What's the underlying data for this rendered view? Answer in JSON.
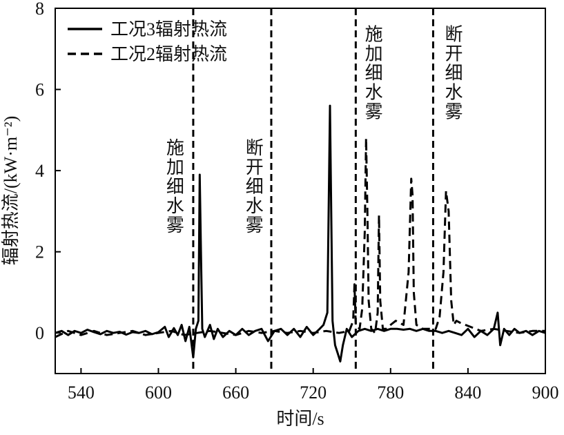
{
  "chart_data": {
    "type": "line",
    "xlabel": "时间/s",
    "ylabel": "辐射热流/(kW·m⁻²)",
    "xlim": [
      520,
      900
    ],
    "ylim": [
      -1,
      8
    ],
    "xticks": [
      540,
      600,
      660,
      720,
      780,
      840,
      900
    ],
    "yticks": [
      0,
      2,
      4,
      6,
      8
    ],
    "legend": "upper left",
    "vlines": [
      627,
      687.5,
      753,
      813
    ],
    "annotations": [
      {
        "text": "施加细水雾",
        "x": 612,
        "y": 4.8
      },
      {
        "text": "断开细水雾",
        "x": 673.5,
        "y": 4.8
      },
      {
        "text": "施加细水雾",
        "x": 766,
        "y": 7.6
      },
      {
        "text": "断开细水雾",
        "x": 828,
        "y": 7.6
      }
    ],
    "series": [
      {
        "name": "工况3辐射热流",
        "color": "#000000",
        "dash": "solid",
        "x": [
          520,
          525,
          530,
          535,
          540,
          545,
          550,
          555,
          560,
          565,
          570,
          575,
          580,
          585,
          590,
          595,
          600,
          605,
          608,
          612,
          615,
          618,
          621,
          624,
          627,
          629,
          631,
          632,
          633,
          634,
          636,
          640,
          643,
          646,
          650,
          655,
          660,
          665,
          670,
          675,
          680,
          685,
          690,
          695,
          700,
          705,
          710,
          715,
          720,
          725,
          728,
          731,
          733,
          734,
          735,
          737,
          739,
          741,
          743,
          746,
          750,
          755,
          760,
          765,
          770,
          775,
          780,
          785,
          790,
          795,
          800,
          805,
          810,
          815,
          820,
          825,
          830,
          835,
          840,
          845,
          850,
          855,
          860,
          863,
          865,
          868,
          872,
          876,
          880,
          885,
          890,
          895,
          900
        ],
        "values": [
          0.0,
          0.05,
          -0.05,
          0.05,
          0.0,
          0.08,
          0.02,
          -0.03,
          0.05,
          0.0,
          0.03,
          -0.04,
          0.02,
          0.0,
          0.05,
          -0.03,
          0.02,
          0.15,
          -0.1,
          0.12,
          -0.05,
          0.2,
          -0.2,
          0.15,
          -0.6,
          0.1,
          0.3,
          3.9,
          2.0,
          0.1,
          -0.1,
          0.2,
          -0.15,
          0.1,
          -0.1,
          0.05,
          -0.05,
          0.1,
          -0.05,
          0.05,
          0.1,
          -0.2,
          0.05,
          0.1,
          -0.05,
          0.1,
          -0.1,
          0.15,
          -0.05,
          0.1,
          0.2,
          0.5,
          5.6,
          3.0,
          0.3,
          -0.3,
          -0.5,
          -0.7,
          -0.3,
          0.1,
          -0.1,
          0.05,
          0.1,
          0.05,
          0.1,
          0.05,
          0.1,
          0.1,
          0.08,
          0.1,
          0.05,
          0.1,
          0.05,
          0.05,
          0.0,
          0.05,
          0.0,
          -0.05,
          0.1,
          -0.1,
          0.05,
          -0.05,
          0.1,
          0.5,
          -0.3,
          0.1,
          -0.05,
          0.1,
          0.0,
          0.05,
          -0.05,
          0.05,
          0.0
        ]
      },
      {
        "name": "工况2辐射热流",
        "color": "#000000",
        "dash": "dashed",
        "x": [
          520,
          530,
          540,
          550,
          560,
          570,
          580,
          590,
          600,
          610,
          620,
          630,
          640,
          650,
          660,
          670,
          680,
          690,
          700,
          710,
          720,
          730,
          740,
          748,
          751,
          752,
          753,
          756,
          758,
          760,
          761,
          762,
          763,
          765,
          768,
          770,
          771,
          772,
          774,
          777,
          780,
          784,
          790,
          794,
          796,
          797,
          798,
          800,
          805,
          810,
          815,
          818,
          821,
          823,
          825,
          827,
          829,
          831,
          834,
          838,
          842,
          846,
          850,
          860,
          870,
          880,
          890,
          900
        ],
        "values": [
          -0.1,
          0.05,
          -0.05,
          0.05,
          -0.05,
          0.0,
          0.05,
          -0.05,
          0.0,
          0.05,
          -0.05,
          0.0,
          0.05,
          0.0,
          -0.05,
          0.05,
          0.0,
          0.05,
          0.0,
          0.05,
          0.0,
          0.05,
          0.0,
          0.05,
          0.3,
          1.2,
          0.2,
          0.1,
          0.6,
          2.5,
          4.8,
          3.0,
          0.8,
          0.1,
          0.0,
          0.5,
          2.9,
          0.8,
          0.1,
          0.1,
          0.2,
          0.3,
          0.2,
          1.5,
          3.8,
          3.4,
          1.0,
          0.2,
          0.1,
          0.1,
          0.1,
          0.4,
          1.5,
          3.5,
          3.0,
          0.8,
          0.2,
          0.3,
          0.25,
          0.2,
          0.15,
          0.1,
          0.05,
          0.1,
          0.05,
          0.0,
          0.05,
          0.05
        ]
      }
    ]
  }
}
